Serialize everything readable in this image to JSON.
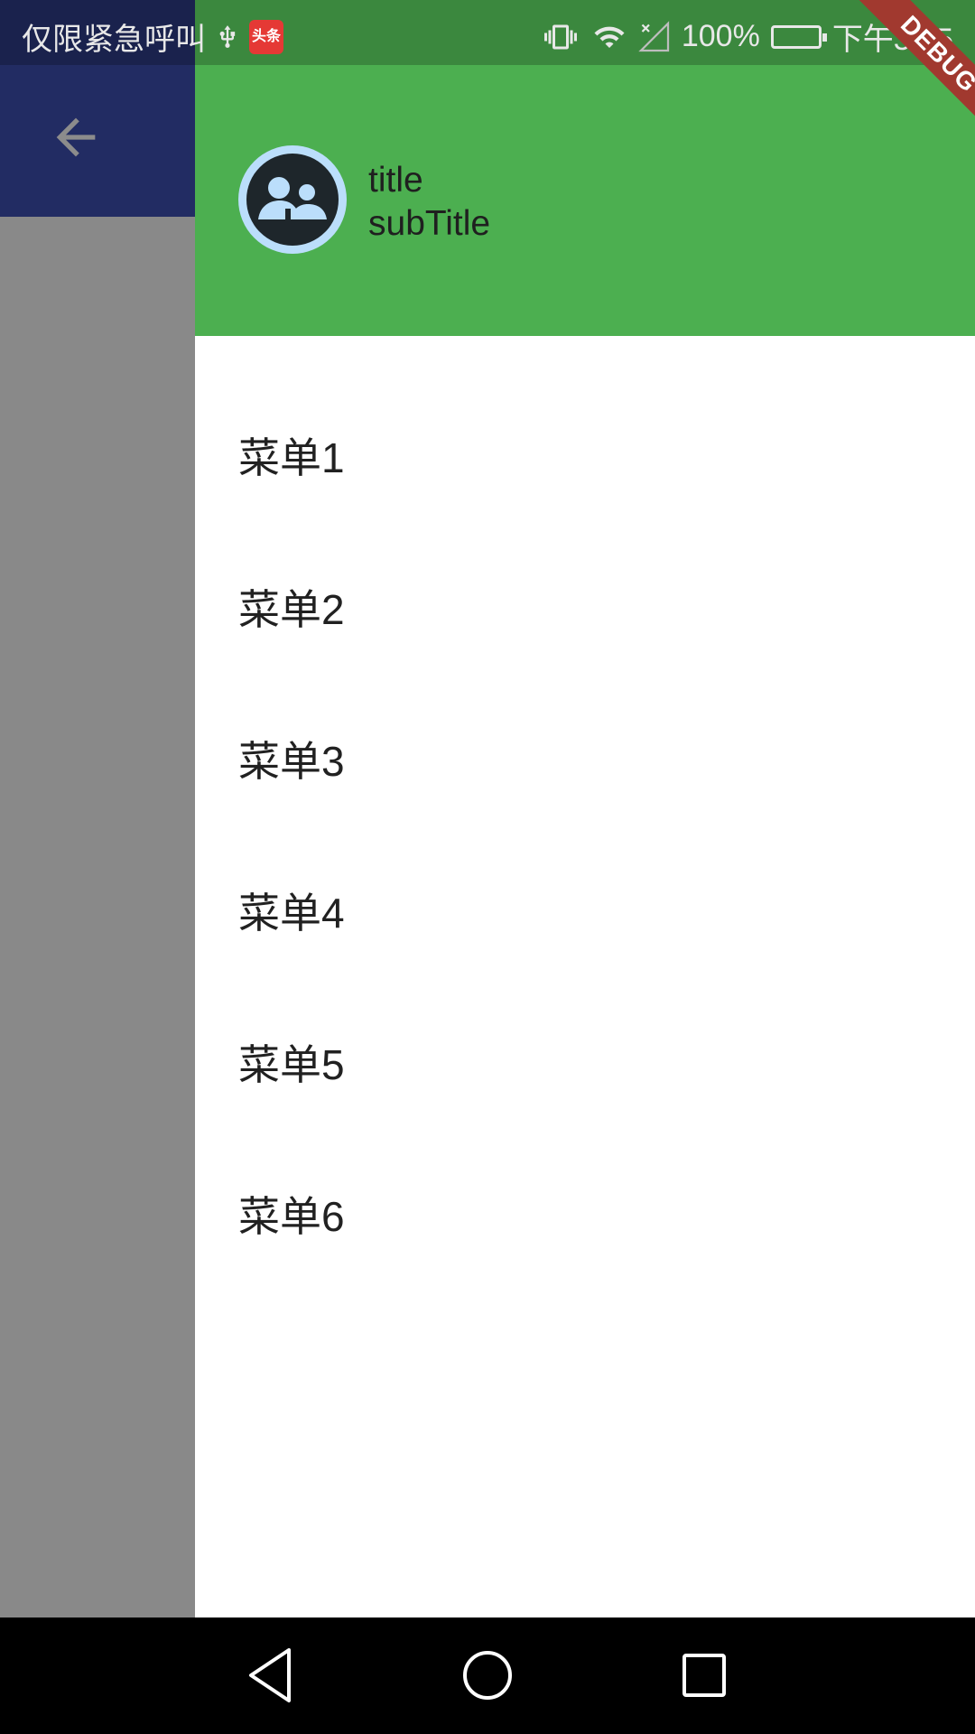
{
  "status_bar": {
    "carrier_text": "仅限紧急呼叫",
    "news_badge": "头条",
    "battery": "100%",
    "time": "下午3:05"
  },
  "app_bar": {
    "back_icon": "arrow-back-icon"
  },
  "drawer": {
    "header": {
      "title": "title",
      "subtitle": "subTitle",
      "avatar_icon": "people-avatar-icon"
    },
    "menu_items": [
      {
        "label": "菜单1"
      },
      {
        "label": "菜单2"
      },
      {
        "label": "菜单3"
      },
      {
        "label": "菜单4"
      },
      {
        "label": "菜单5"
      },
      {
        "label": "菜单6"
      }
    ]
  },
  "debug_banner": "DEBUG",
  "nav_bar": {
    "back": "triangle-back-icon",
    "home": "circle-home-icon",
    "recents": "square-recents-icon"
  },
  "colors": {
    "header_green": "#4caf50",
    "appbar_indigo": "#3f51b5",
    "avatar_bg": "#bbdefb",
    "debug_red": "#a1392f"
  }
}
